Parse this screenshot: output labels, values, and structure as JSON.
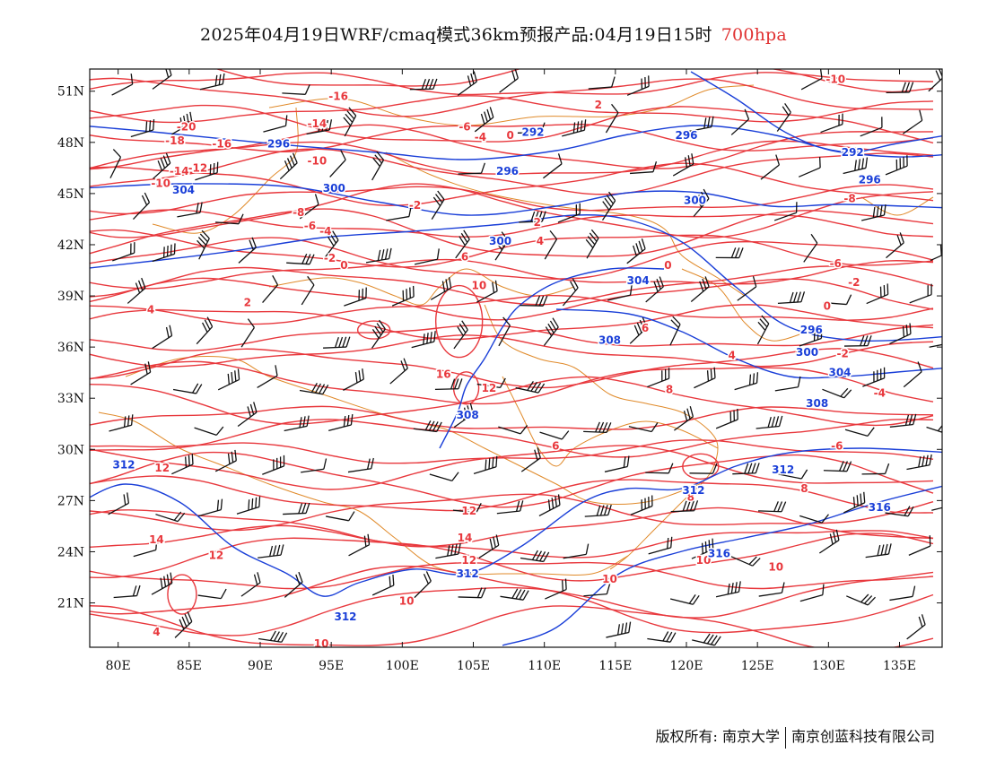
{
  "title": {
    "main": "2025年04月19日WRF/cmaq模式36km预报产品:04月19日15时",
    "level": "700hpa"
  },
  "colors": {
    "temperature_contour": "#e8383d",
    "height_contour": "#1a3fd8",
    "boundary": "#e08a2a",
    "wind_barb": "#111111"
  },
  "axes": {
    "lon_labels": [
      "80E",
      "85E",
      "90E",
      "95E",
      "100E",
      "105E",
      "110E",
      "115E",
      "120E",
      "125E",
      "130E",
      "135E"
    ],
    "lat_labels": [
      "51N",
      "48N",
      "45N",
      "42N",
      "39N",
      "36N",
      "33N",
      "30N",
      "27N",
      "24N",
      "21N"
    ]
  },
  "legend": {},
  "temperature_labels": [
    {
      "text": "-10",
      "lon": 130.5,
      "lat": 51.7
    },
    {
      "text": "-16",
      "lon": 95.5,
      "lat": 50.7
    },
    {
      "text": "-14",
      "lon": 94,
      "lat": 49.1
    },
    {
      "text": "-6",
      "lon": 104.4,
      "lat": 48.9
    },
    {
      "text": "-4",
      "lon": 105.5,
      "lat": 48.3
    },
    {
      "text": "-20",
      "lon": 84.8,
      "lat": 48.9
    },
    {
      "text": "-18",
      "lon": 84,
      "lat": 48.1
    },
    {
      "text": "-16",
      "lon": 87.3,
      "lat": 47.9
    },
    {
      "text": "-12",
      "lon": 85.6,
      "lat": 46.5
    },
    {
      "text": "-14",
      "lon": 84.3,
      "lat": 46.3
    },
    {
      "text": "-10",
      "lon": 83,
      "lat": 45.6
    },
    {
      "text": "-10",
      "lon": 94,
      "lat": 46.9
    },
    {
      "text": "-8",
      "lon": 92.7,
      "lat": 43.9
    },
    {
      "text": "-6",
      "lon": 93.5,
      "lat": 43.1
    },
    {
      "text": "-4",
      "lon": 94.6,
      "lat": 42.8
    },
    {
      "text": "-2",
      "lon": 100.9,
      "lat": 44.3
    },
    {
      "text": "-2",
      "lon": 94.9,
      "lat": 41.2
    },
    {
      "text": "0",
      "lon": 95.9,
      "lat": 40.8
    },
    {
      "text": "2",
      "lon": 89.1,
      "lat": 38.6
    },
    {
      "text": "4",
      "lon": 82.3,
      "lat": 38.2
    },
    {
      "text": "2",
      "lon": 113.8,
      "lat": 50.2
    },
    {
      "text": "0",
      "lon": 107.6,
      "lat": 48.4
    },
    {
      "text": "-8",
      "lon": 131.5,
      "lat": 44.7
    },
    {
      "text": "2",
      "lon": 109.5,
      "lat": 43.3
    },
    {
      "text": "4",
      "lon": 109.7,
      "lat": 42.2
    },
    {
      "text": "6",
      "lon": 104.4,
      "lat": 41.3
    },
    {
      "text": "0",
      "lon": 118.7,
      "lat": 40.8
    },
    {
      "text": "-6",
      "lon": 130.5,
      "lat": 40.9
    },
    {
      "text": "-2",
      "lon": 131.8,
      "lat": 39.8
    },
    {
      "text": "0",
      "lon": 129.9,
      "lat": 38.4
    },
    {
      "text": "10",
      "lon": 105.4,
      "lat": 39.6
    },
    {
      "text": "6",
      "lon": 117.1,
      "lat": 37.1
    },
    {
      "text": "4",
      "lon": 123.2,
      "lat": 35.5
    },
    {
      "text": "-2",
      "lon": 131,
      "lat": 35.6
    },
    {
      "text": "-4",
      "lon": 133.6,
      "lat": 33.3
    },
    {
      "text": "16",
      "lon": 102.9,
      "lat": 34.4
    },
    {
      "text": "12",
      "lon": 106.1,
      "lat": 33.6
    },
    {
      "text": "8",
      "lon": 118.8,
      "lat": 33.5
    },
    {
      "text": "6",
      "lon": 110.8,
      "lat": 30.2
    },
    {
      "text": "-6",
      "lon": 130.6,
      "lat": 30.2
    },
    {
      "text": "8",
      "lon": 128.3,
      "lat": 27.7
    },
    {
      "text": "12",
      "lon": 83.1,
      "lat": 28.9
    },
    {
      "text": "12",
      "lon": 104.7,
      "lat": 26.4
    },
    {
      "text": "8",
      "lon": 120.3,
      "lat": 27.2
    },
    {
      "text": "14",
      "lon": 82.7,
      "lat": 24.7
    },
    {
      "text": "14",
      "lon": 104.4,
      "lat": 24.8
    },
    {
      "text": "12",
      "lon": 86.9,
      "lat": 23.8
    },
    {
      "text": "12",
      "lon": 104.7,
      "lat": 23.5
    },
    {
      "text": "10",
      "lon": 114.6,
      "lat": 22.4
    },
    {
      "text": "10",
      "lon": 121.2,
      "lat": 23.5
    },
    {
      "text": "10",
      "lon": 126.3,
      "lat": 23.1
    },
    {
      "text": "10",
      "lon": 100.3,
      "lat": 21.1
    },
    {
      "text": "4",
      "lon": 82.7,
      "lat": 19.3
    },
    {
      "text": "10",
      "lon": 94.3,
      "lat": 18.6
    }
  ],
  "height_labels": [
    {
      "text": "296",
      "lon": 91.3,
      "lat": 47.9
    },
    {
      "text": "292",
      "lon": 109.2,
      "lat": 48.6
    },
    {
      "text": "296",
      "lon": 120,
      "lat": 48.4
    },
    {
      "text": "292",
      "lon": 131.7,
      "lat": 47.4
    },
    {
      "text": "296",
      "lon": 107.4,
      "lat": 46.3
    },
    {
      "text": "304",
      "lon": 84.6,
      "lat": 45.2
    },
    {
      "text": "300",
      "lon": 95.2,
      "lat": 45.3
    },
    {
      "text": "300",
      "lon": 120.6,
      "lat": 44.6
    },
    {
      "text": "296",
      "lon": 132.9,
      "lat": 45.8
    },
    {
      "text": "300",
      "lon": 106.9,
      "lat": 42.2
    },
    {
      "text": "304",
      "lon": 116.6,
      "lat": 39.9
    },
    {
      "text": "308",
      "lon": 114.6,
      "lat": 36.4
    },
    {
      "text": "296",
      "lon": 128.8,
      "lat": 37
    },
    {
      "text": "300",
      "lon": 128.5,
      "lat": 35.7
    },
    {
      "text": "304",
      "lon": 130.8,
      "lat": 34.5
    },
    {
      "text": "308",
      "lon": 129.2,
      "lat": 32.7
    },
    {
      "text": "308",
      "lon": 104.6,
      "lat": 32
    },
    {
      "text": "312",
      "lon": 80.4,
      "lat": 29.1
    },
    {
      "text": "312",
      "lon": 126.8,
      "lat": 28.8
    },
    {
      "text": "312",
      "lon": 120.5,
      "lat": 27.6
    },
    {
      "text": "316",
      "lon": 133.6,
      "lat": 26.6
    },
    {
      "text": "316",
      "lon": 122.3,
      "lat": 23.9
    },
    {
      "text": "312",
      "lon": 104.6,
      "lat": 22.7
    },
    {
      "text": "312",
      "lon": 96,
      "lat": 20.2
    }
  ],
  "footer": {
    "copyright": "版权所有: 南京大学",
    "company": "南京创蓝科技有限公司"
  }
}
